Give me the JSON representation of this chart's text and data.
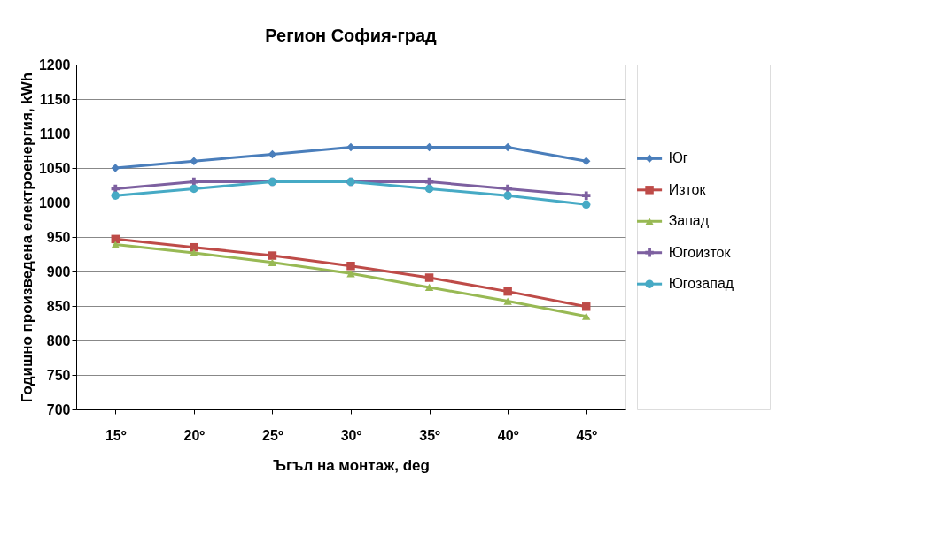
{
  "chart_data": {
    "type": "line",
    "title": "Регион София-град",
    "xlabel": "Ъгъл на монтаж, deg",
    "ylabel": "Годишно произведена електроенергия,  kWh",
    "categories": [
      "15º",
      "20º",
      "25º",
      "30º",
      "35º",
      "40º",
      "45º"
    ],
    "series": [
      {
        "name": "Юг",
        "color": "#4a7ebb",
        "marker": "diamond",
        "values": [
          1050,
          1060,
          1070,
          1080,
          1080,
          1080,
          1060
        ]
      },
      {
        "name": "Изток",
        "color": "#be4b48",
        "marker": "square",
        "values": [
          947,
          935,
          923,
          908,
          891,
          871,
          849
        ]
      },
      {
        "name": "Запад",
        "color": "#98b954",
        "marker": "triangle",
        "values": [
          939,
          927,
          913,
          897,
          877,
          857,
          835
        ]
      },
      {
        "name": "Югоизток",
        "color": "#7d60a0",
        "marker": "cross",
        "values": [
          1020,
          1030,
          1030,
          1030,
          1030,
          1020,
          1010
        ]
      },
      {
        "name": "Югозапад",
        "color": "#46aac5",
        "marker": "circle",
        "values": [
          1010,
          1020,
          1030,
          1030,
          1020,
          1010,
          997
        ]
      }
    ],
    "ylim": [
      700,
      1200
    ],
    "yticks": [
      700,
      750,
      800,
      850,
      900,
      950,
      1000,
      1050,
      1100,
      1150,
      1200
    ],
    "grid": "y",
    "legend": "right",
    "line_style": "solid"
  }
}
